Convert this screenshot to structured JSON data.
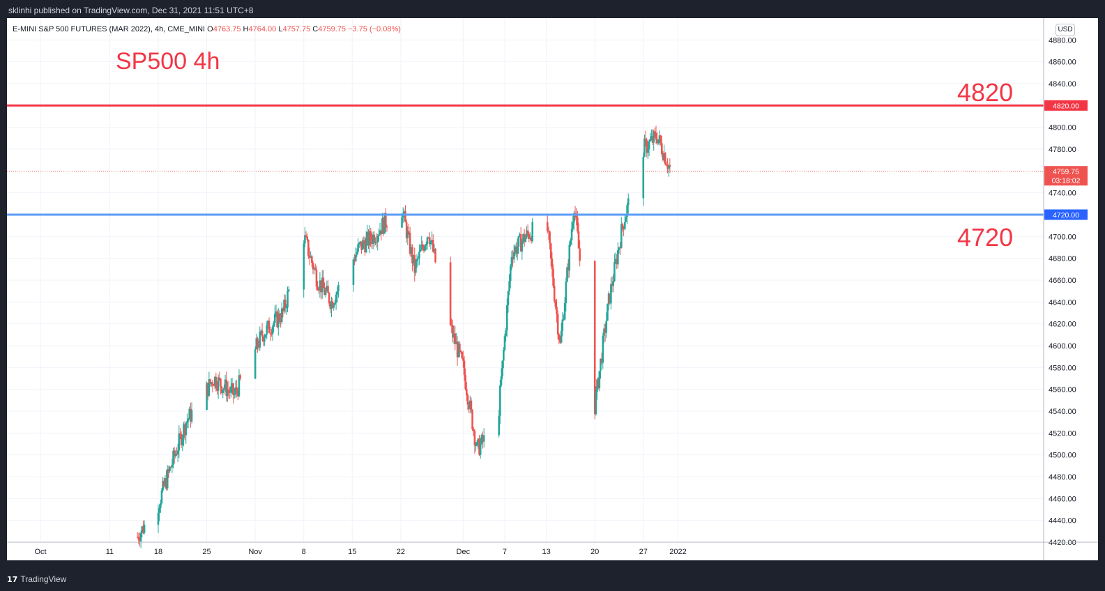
{
  "header": {
    "published": "sklinhi published on TradingView.com, Dec 31, 2021 11:51 UTC+8"
  },
  "footer": {
    "brand": "TradingView",
    "logo_glyph": "17"
  },
  "legend": {
    "symbol": "E-MINI S&P 500 FUTURES (MAR 2022), 4h, CME_MINI",
    "o_label": "O",
    "o_value": "4763.75",
    "h_label": "H",
    "h_value": "4764.00",
    "l_label": "L",
    "l_value": "4757.75",
    "c_label": "C",
    "c_value": "4759.75",
    "change": "−3.75 (−0.08%)"
  },
  "annotations": {
    "title": "SP500 4h",
    "resistance_text": "4820",
    "support_text": "4720"
  },
  "price_axis": {
    "currency": "USD",
    "ticks": [
      "4880.00",
      "4860.00",
      "4840.00",
      "4800.00",
      "4780.00",
      "4740.00",
      "4700.00",
      "4680.00",
      "4660.00",
      "4640.00",
      "4620.00",
      "4600.00",
      "4580.00",
      "4560.00",
      "4540.00",
      "4520.00",
      "4500.00",
      "4480.00",
      "4460.00",
      "4440.00",
      "4420.00"
    ],
    "resistance_label": "4820.00",
    "support_label": "4720.00",
    "last_price_label": "4759.75",
    "countdown_label": "03:18:02"
  },
  "colors": {
    "up": "#26a69a",
    "down": "#ef5350",
    "resistance": "#f23645",
    "support": "#5b9cf6",
    "grid": "#f0f3fa",
    "axis_text": "#131722",
    "annotation": "#f23645"
  },
  "chart_data": {
    "type": "candlestick",
    "title": "SP500 4h",
    "xlabel": "",
    "ylabel": "",
    "ylim": [
      4420,
      4900
    ],
    "grid": true,
    "x_tick_labels": [
      "Oct",
      "11",
      "18",
      "25",
      "Nov",
      "8",
      "15",
      "22",
      "Dec",
      "7",
      "13",
      "20",
      "27",
      "2022"
    ],
    "horizontal_lines": [
      {
        "label": "4820",
        "value": 4820,
        "color": "#f23645"
      },
      {
        "label": "4720",
        "value": 4720,
        "color": "#5b9cf6"
      }
    ],
    "last_price": 4759.75,
    "keypoints": [
      {
        "x": "Oct 15",
        "close": 4425
      },
      {
        "x": "Oct 18",
        "close": 4455
      },
      {
        "x": "Oct 22",
        "close": 4530
      },
      {
        "x": "Oct 26",
        "close": 4570
      },
      {
        "x": "Oct 29",
        "close": 4555
      },
      {
        "x": "Nov 2",
        "close": 4610
      },
      {
        "x": "Nov 5",
        "close": 4630
      },
      {
        "x": "Nov 8",
        "close": 4700
      },
      {
        "x": "Nov 10",
        "close": 4660
      },
      {
        "x": "Nov 12",
        "close": 4640
      },
      {
        "x": "Nov 16",
        "close": 4690
      },
      {
        "x": "Nov 18",
        "close": 4700
      },
      {
        "x": "Nov 22",
        "close": 4730
      },
      {
        "x": "Nov 24",
        "close": 4670
      },
      {
        "x": "Nov 26",
        "close": 4705
      },
      {
        "x": "Nov 29",
        "close": 4620
      },
      {
        "x": "Dec 1",
        "close": 4580
      },
      {
        "x": "Dec 3",
        "close": 4505
      },
      {
        "x": "Dec 6",
        "close": 4530
      },
      {
        "x": "Dec 8",
        "close": 4685
      },
      {
        "x": "Dec 10",
        "close": 4700
      },
      {
        "x": "Dec 13",
        "close": 4715
      },
      {
        "x": "Dec 15",
        "close": 4600
      },
      {
        "x": "Dec 17",
        "close": 4730
      },
      {
        "x": "Dec 20",
        "close": 4545
      },
      {
        "x": "Dec 22",
        "close": 4640
      },
      {
        "x": "Dec 24",
        "close": 4710
      },
      {
        "x": "Dec 27",
        "close": 4780
      },
      {
        "x": "Dec 29",
        "close": 4792
      },
      {
        "x": "Dec 31",
        "close": 4759.75
      }
    ]
  }
}
